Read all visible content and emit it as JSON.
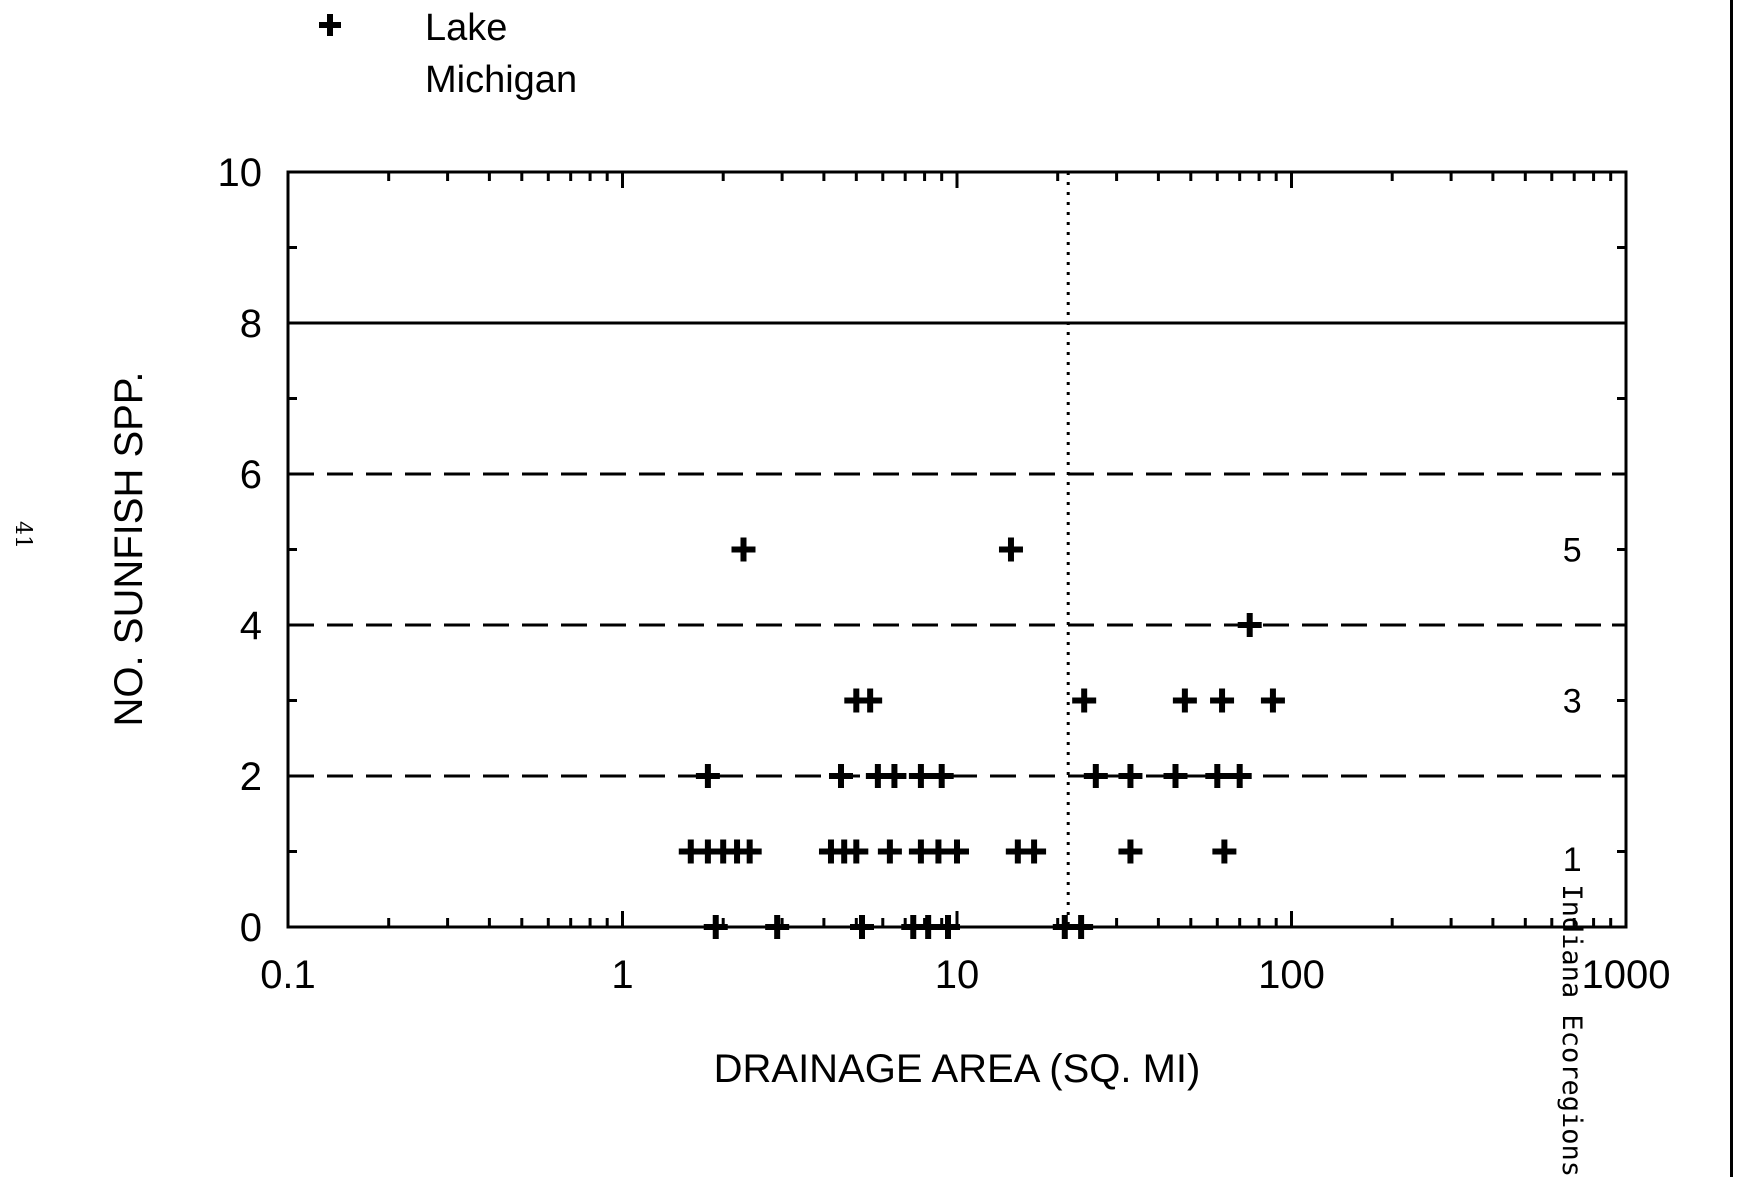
{
  "page_number": "41",
  "side_note": "Indiana Ecoregions",
  "chart_data": {
    "type": "scatter",
    "title": "",
    "xlabel": "DRAINAGE AREA (SQ. MI)",
    "ylabel": "NO. SUNFISH SPP.",
    "x_scale": "log",
    "xlim": [
      0.1,
      1000
    ],
    "ylim": [
      0,
      10
    ],
    "x_tick_labels": [
      "0.1",
      "1",
      "10",
      "100",
      "1000"
    ],
    "y_tick_labels": [
      "0",
      "2",
      "4",
      "6",
      "8",
      "10"
    ],
    "grid": false,
    "legend": {
      "position": "top-left",
      "entries": [
        {
          "symbol": "plus",
          "label": "Lake\nMichigan"
        }
      ]
    },
    "series": [
      {
        "name": "Lake Michigan",
        "marker": "plus",
        "color": "#000000",
        "points": [
          [
            2.3,
            5
          ],
          [
            14.5,
            5
          ],
          [
            75,
            4
          ],
          [
            5.0,
            3
          ],
          [
            5.5,
            3
          ],
          [
            24,
            3
          ],
          [
            48,
            3
          ],
          [
            62,
            3
          ],
          [
            88,
            3
          ],
          [
            1.8,
            2
          ],
          [
            4.5,
            2
          ],
          [
            5.8,
            2
          ],
          [
            6.5,
            2
          ],
          [
            7.8,
            2
          ],
          [
            9.0,
            2
          ],
          [
            26,
            2
          ],
          [
            33,
            2
          ],
          [
            45,
            2
          ],
          [
            60,
            2
          ],
          [
            70,
            2
          ],
          [
            1.6,
            1
          ],
          [
            1.8,
            1
          ],
          [
            2.0,
            1
          ],
          [
            2.2,
            1
          ],
          [
            2.4,
            1
          ],
          [
            4.2,
            1
          ],
          [
            4.6,
            1
          ],
          [
            5.0,
            1
          ],
          [
            6.3,
            1
          ],
          [
            7.8,
            1
          ],
          [
            8.8,
            1
          ],
          [
            10.0,
            1
          ],
          [
            15.2,
            1
          ],
          [
            17.0,
            1
          ],
          [
            33,
            1
          ],
          [
            63,
            1
          ],
          [
            1.9,
            0
          ],
          [
            2.9,
            0
          ],
          [
            5.2,
            0
          ],
          [
            7.4,
            0
          ],
          [
            8.2,
            0
          ],
          [
            9.4,
            0
          ],
          [
            21,
            0
          ],
          [
            23.5,
            0
          ]
        ]
      }
    ],
    "reference_lines": [
      {
        "orientation": "horizontal",
        "y": 8,
        "style": "solid"
      },
      {
        "orientation": "horizontal",
        "y": 6,
        "style": "dashed"
      },
      {
        "orientation": "horizontal",
        "y": 4,
        "style": "dashed"
      },
      {
        "orientation": "horizontal",
        "y": 2,
        "style": "dashed"
      },
      {
        "orientation": "vertical",
        "x": 21.5,
        "style": "dotted"
      }
    ],
    "annotations": [
      {
        "text": "5",
        "x": 700,
        "y": 5.0
      },
      {
        "text": "3",
        "x": 700,
        "y": 3.0
      },
      {
        "text": "1",
        "x": 700,
        "y": 0.9
      }
    ]
  }
}
